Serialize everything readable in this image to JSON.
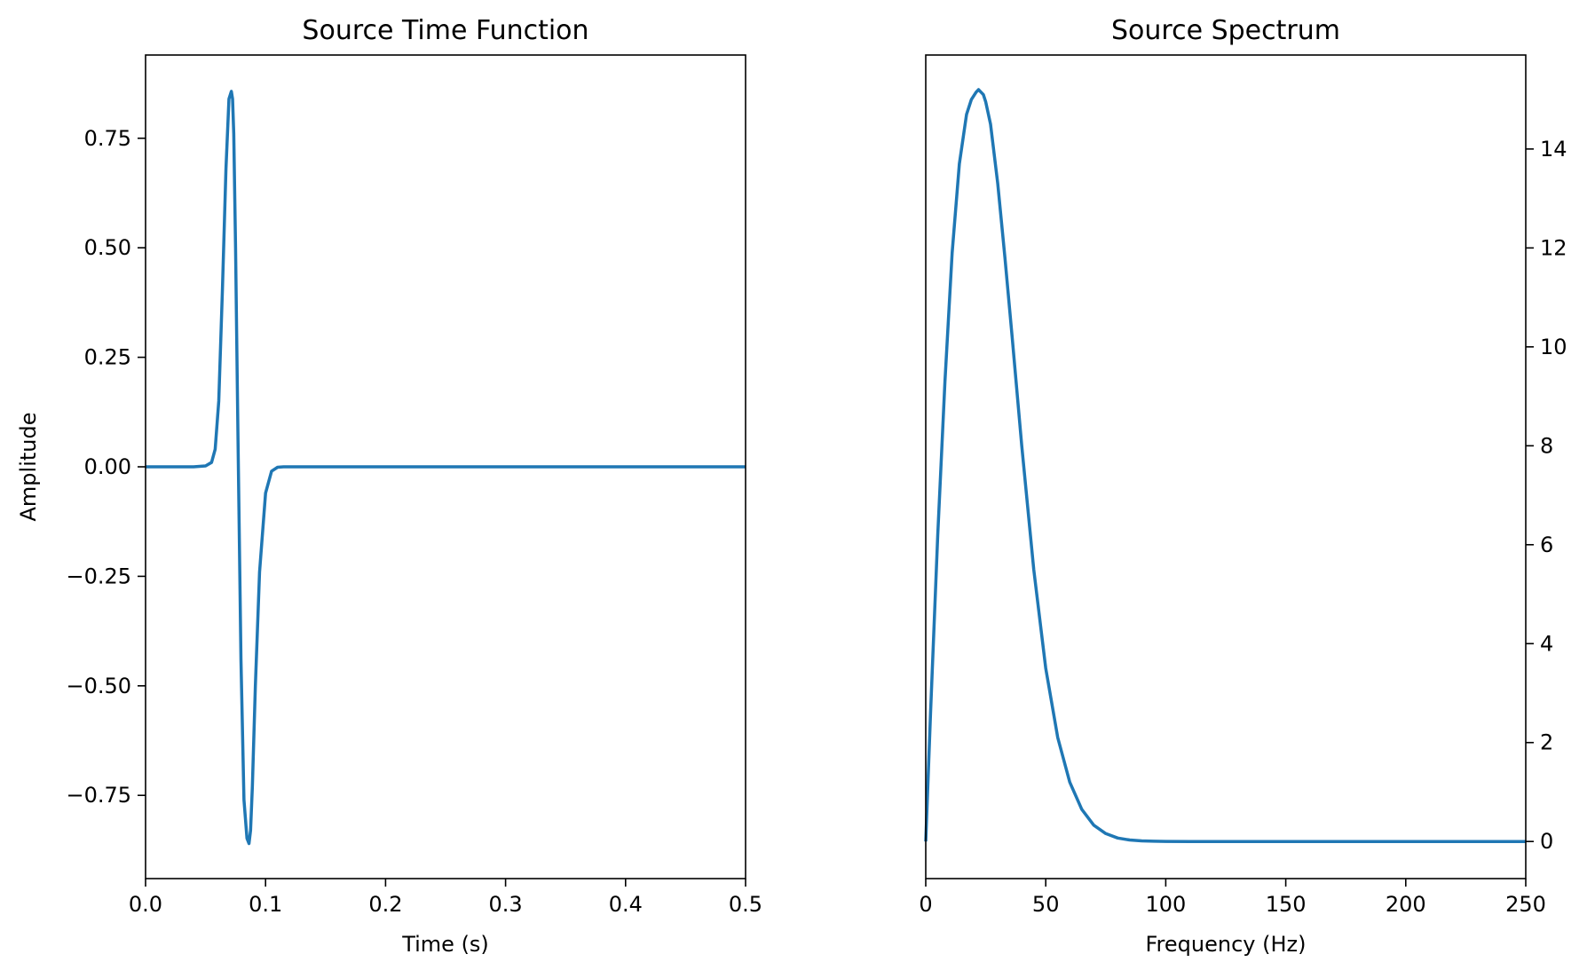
{
  "chart_data": [
    {
      "type": "line",
      "title": "Source Time Function",
      "xlabel": "Time (s)",
      "ylabel": "Amplitude",
      "xlim": [
        0,
        0.5
      ],
      "ylim": [
        -0.94,
        0.94
      ],
      "xticks": [
        0.0,
        0.1,
        0.2,
        0.3,
        0.4,
        0.5
      ],
      "xtick_labels": [
        "0.0",
        "0.1",
        "0.2",
        "0.3",
        "0.4",
        "0.5"
      ],
      "yticks": [
        0.75,
        0.5,
        0.25,
        0.0,
        -0.25,
        -0.5,
        -0.75
      ],
      "ytick_labels": [
        "0.75",
        "0.50",
        "0.25",
        "0.00",
        "−0.25",
        "−0.50",
        "−0.75"
      ],
      "y_axis_side": "left",
      "grid": false,
      "line_color": "#1f77b4",
      "x": [
        0.0,
        0.04,
        0.05,
        0.055,
        0.058,
        0.061,
        0.064,
        0.067,
        0.0695,
        0.0715,
        0.0725,
        0.0735,
        0.075,
        0.077,
        0.0795,
        0.082,
        0.0845,
        0.0862,
        0.0875,
        0.089,
        0.0915,
        0.095,
        0.1,
        0.105,
        0.11,
        0.115,
        0.5
      ],
      "y": [
        0.0,
        0.0,
        0.002,
        0.01,
        0.04,
        0.15,
        0.4,
        0.68,
        0.84,
        0.857,
        0.84,
        0.76,
        0.5,
        0.07,
        -0.44,
        -0.76,
        -0.848,
        -0.86,
        -0.83,
        -0.73,
        -0.5,
        -0.24,
        -0.06,
        -0.01,
        -0.001,
        0.0,
        0.0
      ]
    },
    {
      "type": "line",
      "title": "Source Spectrum",
      "xlabel": "Frequency (Hz)",
      "ylabel": "",
      "xlim": [
        0,
        250
      ],
      "ylim": [
        -0.75,
        15.9
      ],
      "xticks": [
        0,
        50,
        100,
        150,
        200,
        250
      ],
      "xtick_labels": [
        "0",
        "50",
        "100",
        "150",
        "200",
        "250"
      ],
      "yticks": [
        0,
        2,
        4,
        6,
        8,
        10,
        12,
        14
      ],
      "ytick_labels": [
        "0",
        "2",
        "4",
        "6",
        "8",
        "10",
        "12",
        "14"
      ],
      "y_axis_side": "right",
      "grid": false,
      "line_color": "#1f77b4",
      "x": [
        0,
        2,
        5,
        8,
        11,
        14,
        17,
        19,
        21,
        22,
        23,
        24,
        25,
        27,
        30,
        33,
        36,
        40,
        45,
        50,
        55,
        60,
        65,
        70,
        75,
        80,
        85,
        90,
        95,
        100,
        110,
        125,
        150,
        200,
        250
      ],
      "y": [
        0.0,
        2.6,
        6.2,
        9.3,
        11.9,
        13.7,
        14.7,
        15.0,
        15.15,
        15.2,
        15.15,
        15.1,
        14.95,
        14.5,
        13.3,
        11.8,
        10.2,
        8.0,
        5.5,
        3.5,
        2.1,
        1.2,
        0.65,
        0.33,
        0.16,
        0.07,
        0.03,
        0.012,
        0.005,
        0.002,
        0.0,
        0.0,
        0.0,
        0.0,
        0.0
      ]
    }
  ]
}
